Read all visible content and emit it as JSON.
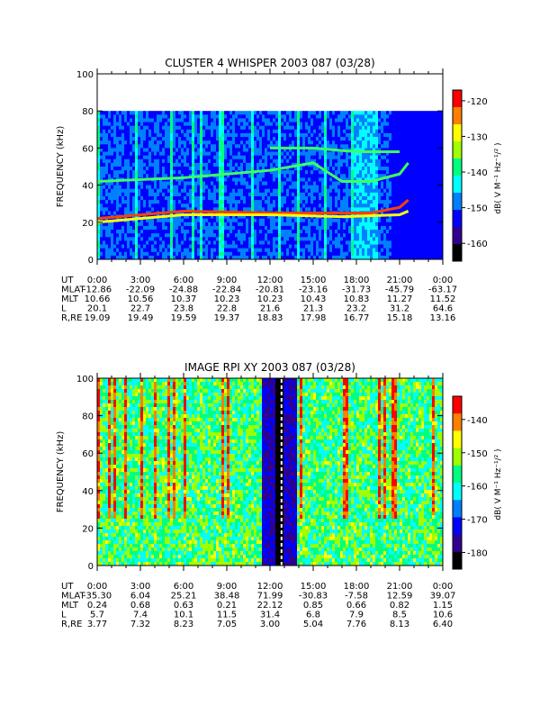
{
  "chart_data": [
    {
      "type": "heatmap",
      "title": "CLUSTER 4 WHISPER 2003 087 (03/28)",
      "ylabel": "FREQUENCY (kHz)",
      "ylim": [
        0,
        100
      ],
      "yticks": [
        "0",
        "20",
        "40",
        "60",
        "80",
        "100"
      ],
      "xlim_hours": [
        0,
        24
      ],
      "data_top_khz": 80,
      "colorbar": {
        "label": "dB( V M⁻¹ Hz⁻¹/² )",
        "min": -165,
        "max": -117,
        "ticks": [
          "-120",
          "-130",
          "-140",
          "-150",
          "-160"
        ],
        "tick_values": [
          -120,
          -130,
          -140,
          -150,
          -160
        ],
        "colors": [
          "#ffffff",
          "#ff0000",
          "#ff8000",
          "#ffff00",
          "#a0ff00",
          "#00ff80",
          "#00ffff",
          "#0080ff",
          "#0000ff",
          "#300090",
          "#000000"
        ]
      },
      "features": [
        {
          "name": "band",
          "points": [
            [
              0,
              22
            ],
            [
              6,
              26
            ],
            [
              12,
              25
            ],
            [
              15,
              25
            ],
            [
              17,
              25
            ],
            [
              19,
              25
            ],
            [
              21,
              28
            ],
            [
              21.6,
              32
            ]
          ]
        },
        {
          "name": "band",
          "points": [
            [
              0,
              20
            ],
            [
              6,
              24
            ],
            [
              12,
              24
            ],
            [
              17,
              23
            ],
            [
              21,
              24
            ],
            [
              21.6,
              26
            ]
          ]
        },
        {
          "name": "band",
          "points": [
            [
              0,
              42
            ],
            [
              6,
              44
            ],
            [
              12,
              48
            ],
            [
              15,
              52
            ],
            [
              17,
              42
            ],
            [
              19,
              42
            ],
            [
              21,
              46
            ],
            [
              21.6,
              52
            ]
          ]
        },
        {
          "name": "band",
          "points": [
            [
              12,
              60
            ],
            [
              15,
              60
            ],
            [
              18,
              58
            ],
            [
              21,
              58
            ]
          ]
        }
      ],
      "table": {
        "labels": [
          "UT",
          "MLAT",
          "MLT",
          "L",
          "R,RE"
        ],
        "columns": [
          [
            "0:00",
            "-12.86",
            "10.66",
            "20.1",
            "19.09"
          ],
          [
            "3:00",
            "-22.09",
            "10.56",
            "22.7",
            "19.49"
          ],
          [
            "6:00",
            "-24.88",
            "10.37",
            "23.8",
            "19.59"
          ],
          [
            "9:00",
            "-22.84",
            "10.23",
            "22.8",
            "19.37"
          ],
          [
            "12:00",
            "-20.81",
            "10.23",
            "21.6",
            "18.83"
          ],
          [
            "15:00",
            "-23.16",
            "10.43",
            "21.3",
            "17.98"
          ],
          [
            "18:00",
            "-31.73",
            "10.83",
            "23.2",
            "16.77"
          ],
          [
            "21:00",
            "-45.79",
            "11.27",
            "31.2",
            "15.18"
          ],
          [
            "0:00",
            "-63.17",
            "11.52",
            "64.6",
            "13.16"
          ]
        ]
      }
    },
    {
      "type": "heatmap",
      "title": "IMAGE RPI XY 2003 087 (03/28)",
      "ylabel": "FREQUENCY (kHz)",
      "ylim": [
        0,
        100
      ],
      "yticks": [
        "0",
        "20",
        "40",
        "60",
        "80",
        "100"
      ],
      "xlim_hours": [
        0,
        24
      ],
      "data_top_khz": 100,
      "colorbar": {
        "label": "dB( V M⁻¹ Hz⁻¹/² )",
        "min": -185,
        "max": -133,
        "ticks": [
          "-140",
          "-150",
          "-160",
          "-170",
          "-180"
        ],
        "tick_values": [
          -140,
          -150,
          -160,
          -170,
          -180
        ],
        "colors": [
          "#ffffff",
          "#ff0000",
          "#ff8000",
          "#ffff00",
          "#a0ff00",
          "#00ff80",
          "#00ffff",
          "#0080ff",
          "#0000ff",
          "#300090",
          "#000000"
        ]
      },
      "features": [
        {
          "name": "perigee",
          "points": [
            [
              12.8,
              0
            ],
            [
              12.8,
              100
            ]
          ]
        }
      ],
      "table": {
        "labels": [
          "UT",
          "MLAT",
          "MLT",
          "L",
          "R,RE"
        ],
        "columns": [
          [
            "0:00",
            "-35.30",
            "0.24",
            "5.7",
            "3.77"
          ],
          [
            "3:00",
            "6.04",
            "0.68",
            "7.4",
            "7.32"
          ],
          [
            "6:00",
            "25.21",
            "0.63",
            "10.1",
            "8.23"
          ],
          [
            "9:00",
            "38.48",
            "0.21",
            "11.5",
            "7.05"
          ],
          [
            "12:00",
            "71.99",
            "22.12",
            "31.4",
            "3.00"
          ],
          [
            "15:00",
            "-30.83",
            "0.85",
            "6.8",
            "5.04"
          ],
          [
            "18:00",
            "-7.58",
            "0.66",
            "7.9",
            "7.76"
          ],
          [
            "21:00",
            "12.59",
            "0.82",
            "8.5",
            "8.13"
          ],
          [
            "0:00",
            "39.07",
            "1.15",
            "10.6",
            "6.40"
          ]
        ]
      }
    }
  ]
}
